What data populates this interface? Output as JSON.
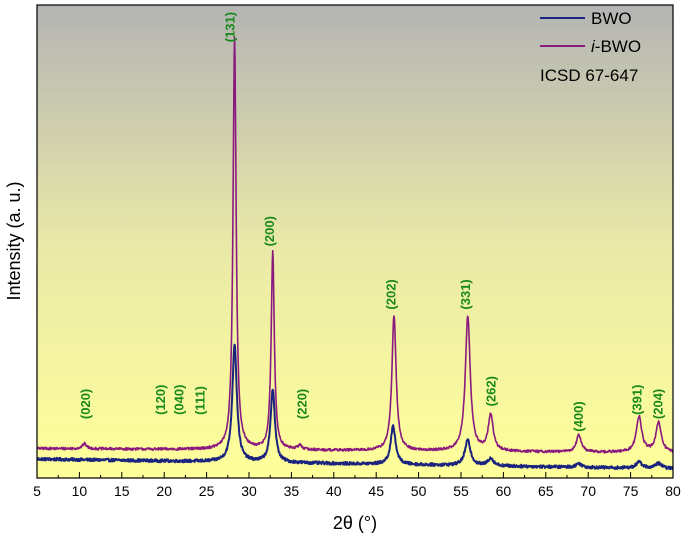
{
  "chart_data": {
    "type": "line",
    "title": "",
    "xlabel": "2θ (°)",
    "ylabel": "Intensity (a. u.)",
    "xlim": [
      5,
      80
    ],
    "xticks": [
      5,
      10,
      15,
      20,
      25,
      30,
      35,
      40,
      45,
      50,
      55,
      60,
      65,
      70,
      75,
      80
    ],
    "ylim": [
      0,
      100
    ],
    "y_ticks_shown": false,
    "grid": false,
    "legend_position": "top-right",
    "colors": {
      "BWO": "#1a237e",
      "i-BWO": "#8b1a7f",
      "peak_labels": "#1a8a1a",
      "background_top": "#b4b4b4",
      "background_bottom": "#ffff9a"
    },
    "legend": {
      "bwo": "BWO",
      "ibwo_prefix": "i",
      "ibwo_suffix": "-BWO",
      "reference": "ICSD 67-647"
    },
    "series": [
      {
        "name": "BWO",
        "baseline_low": 2.2,
        "baseline_high": 4.5,
        "noise": 0.35,
        "peaks": [
          {
            "x": 28.3,
            "height": 28.0,
            "width": 0.32
          },
          {
            "x": 32.8,
            "height": 17.5,
            "width": 0.3
          },
          {
            "x": 47.0,
            "height": 9.0,
            "width": 0.35
          },
          {
            "x": 55.8,
            "height": 6.0,
            "width": 0.4
          },
          {
            "x": 58.5,
            "height": 1.8,
            "width": 0.4
          },
          {
            "x": 68.9,
            "height": 0.9,
            "width": 0.4
          },
          {
            "x": 76.0,
            "height": 1.4,
            "width": 0.45
          },
          {
            "x": 78.3,
            "height": 1.2,
            "width": 0.45
          }
        ]
      },
      {
        "name": "i-BWO",
        "baseline_low": 6.0,
        "baseline_high": 7.0,
        "noise": 0.3,
        "peaks": [
          {
            "x": 10.6,
            "height": 1.2,
            "width": 0.3
          },
          {
            "x": 28.3,
            "height": 98.0,
            "width": 0.22
          },
          {
            "x": 32.8,
            "height": 47.0,
            "width": 0.22
          },
          {
            "x": 36.0,
            "height": 1.0,
            "width": 0.3
          },
          {
            "x": 47.1,
            "height": 32.0,
            "width": 0.3
          },
          {
            "x": 55.8,
            "height": 32.0,
            "width": 0.35
          },
          {
            "x": 58.5,
            "height": 8.5,
            "width": 0.35
          },
          {
            "x": 68.9,
            "height": 4.0,
            "width": 0.35
          },
          {
            "x": 76.0,
            "height": 8.5,
            "width": 0.38
          },
          {
            "x": 78.3,
            "height": 7.0,
            "width": 0.38
          }
        ]
      }
    ],
    "peak_labels": [
      {
        "x": 10.8,
        "y": 14.0,
        "text": "(020)"
      },
      {
        "x": 19.6,
        "y": 15.0,
        "text": "(120)"
      },
      {
        "x": 21.8,
        "y": 15.0,
        "text": "(040)"
      },
      {
        "x": 24.3,
        "y": 15.0,
        "text": "(111)"
      },
      {
        "x": 27.8,
        "y": 103.5,
        "text": "(131)"
      },
      {
        "x": 32.5,
        "y": 55.0,
        "text": "(200)"
      },
      {
        "x": 36.3,
        "y": 14.0,
        "text": "(220)"
      },
      {
        "x": 46.8,
        "y": 40.0,
        "text": "(202)"
      },
      {
        "x": 55.6,
        "y": 40.0,
        "text": "(331)"
      },
      {
        "x": 58.6,
        "y": 17.0,
        "text": "(262)"
      },
      {
        "x": 68.9,
        "y": 11.0,
        "text": "(400)"
      },
      {
        "x": 75.8,
        "y": 15.0,
        "text": "(391)"
      },
      {
        "x": 78.3,
        "y": 14.0,
        "text": "(204)"
      }
    ]
  }
}
